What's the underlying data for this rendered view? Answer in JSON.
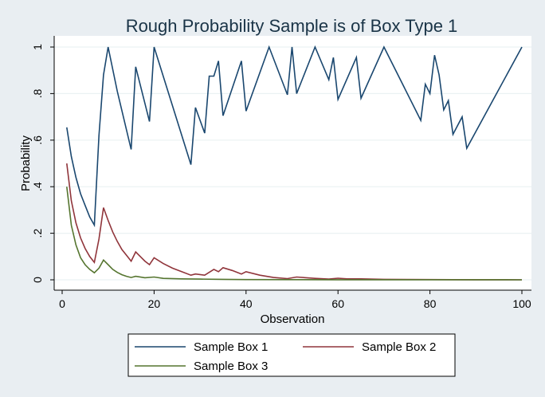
{
  "chart_data": {
    "type": "line",
    "title": "Rough Probability Sample is of Box Type 1",
    "xlabel": "Observation",
    "ylabel": "Probability",
    "xlim": [
      0,
      100
    ],
    "ylim": [
      0,
      1
    ],
    "xticks": [
      0,
      20,
      40,
      60,
      80,
      100
    ],
    "yticks": [
      0,
      0.2,
      0.4,
      0.6,
      0.8,
      1
    ],
    "ytick_labels": [
      "0",
      ".2",
      ".4",
      ".6",
      ".8",
      "1"
    ],
    "grid": true,
    "legend_position": "bottom",
    "series": [
      {
        "name": "Sample Box 1",
        "color": "#1a476f",
        "points": [
          [
            1,
            0.655
          ],
          [
            2,
            0.53
          ],
          [
            3,
            0.44
          ],
          [
            4,
            0.37
          ],
          [
            5,
            0.32
          ],
          [
            6,
            0.27
          ],
          [
            7,
            0.235
          ],
          [
            8,
            0.62
          ],
          [
            9,
            0.88
          ],
          [
            10,
            1.0
          ],
          [
            12,
            0.81
          ],
          [
            15,
            0.56
          ],
          [
            16,
            0.915
          ],
          [
            19,
            0.68
          ],
          [
            20,
            1.0
          ],
          [
            28,
            0.495
          ],
          [
            29,
            0.74
          ],
          [
            31,
            0.63
          ],
          [
            32,
            0.875
          ],
          [
            33,
            0.875
          ],
          [
            34,
            0.94
          ],
          [
            35,
            0.705
          ],
          [
            39,
            0.94
          ],
          [
            40,
            0.725
          ],
          [
            45,
            1.0
          ],
          [
            49,
            0.795
          ],
          [
            50,
            1.0
          ],
          [
            51,
            0.8
          ],
          [
            55,
            1.0
          ],
          [
            58,
            0.86
          ],
          [
            59,
            0.955
          ],
          [
            60,
            0.775
          ],
          [
            64,
            0.955
          ],
          [
            65,
            0.78
          ],
          [
            70,
            1.0
          ],
          [
            78,
            0.685
          ],
          [
            79,
            0.84
          ],
          [
            80,
            0.8
          ],
          [
            81,
            0.965
          ],
          [
            82,
            0.88
          ],
          [
            83,
            0.73
          ],
          [
            84,
            0.77
          ],
          [
            85,
            0.625
          ],
          [
            87,
            0.7
          ],
          [
            88,
            0.565
          ],
          [
            100,
            1.0
          ]
        ]
      },
      {
        "name": "Sample Box 2",
        "color": "#90353b",
        "points": [
          [
            1,
            0.5
          ],
          [
            2,
            0.34
          ],
          [
            3,
            0.245
          ],
          [
            4,
            0.18
          ],
          [
            5,
            0.135
          ],
          [
            6,
            0.1
          ],
          [
            7,
            0.075
          ],
          [
            8,
            0.175
          ],
          [
            9,
            0.31
          ],
          [
            10,
            0.255
          ],
          [
            11,
            0.205
          ],
          [
            12,
            0.165
          ],
          [
            13,
            0.13
          ],
          [
            14,
            0.105
          ],
          [
            15,
            0.08
          ],
          [
            16,
            0.12
          ],
          [
            17,
            0.1
          ],
          [
            18,
            0.08
          ],
          [
            19,
            0.065
          ],
          [
            20,
            0.095
          ],
          [
            22,
            0.07
          ],
          [
            24,
            0.05
          ],
          [
            26,
            0.035
          ],
          [
            28,
            0.02
          ],
          [
            29,
            0.025
          ],
          [
            31,
            0.02
          ],
          [
            33,
            0.045
          ],
          [
            34,
            0.035
          ],
          [
            35,
            0.052
          ],
          [
            37,
            0.04
          ],
          [
            39,
            0.025
          ],
          [
            40,
            0.035
          ],
          [
            43,
            0.02
          ],
          [
            46,
            0.01
          ],
          [
            49,
            0.005
          ],
          [
            51,
            0.012
          ],
          [
            55,
            0.006
          ],
          [
            58,
            0.003
          ],
          [
            60,
            0.007
          ],
          [
            62,
            0.004
          ],
          [
            65,
            0.004
          ],
          [
            70,
            0.002
          ],
          [
            80,
            0.001
          ],
          [
            90,
            0.0005
          ],
          [
            100,
            0.0
          ]
        ]
      },
      {
        "name": "Sample Box 3",
        "color": "#55752f",
        "points": [
          [
            1,
            0.4
          ],
          [
            2,
            0.235
          ],
          [
            3,
            0.15
          ],
          [
            4,
            0.095
          ],
          [
            5,
            0.065
          ],
          [
            6,
            0.045
          ],
          [
            7,
            0.03
          ],
          [
            8,
            0.05
          ],
          [
            9,
            0.085
          ],
          [
            10,
            0.065
          ],
          [
            11,
            0.045
          ],
          [
            12,
            0.032
          ],
          [
            13,
            0.022
          ],
          [
            14,
            0.015
          ],
          [
            15,
            0.01
          ],
          [
            16,
            0.015
          ],
          [
            18,
            0.009
          ],
          [
            20,
            0.012
          ],
          [
            22,
            0.006
          ],
          [
            26,
            0.004
          ],
          [
            30,
            0.003
          ],
          [
            35,
            0.002
          ],
          [
            40,
            0.001
          ],
          [
            60,
            0.0005
          ],
          [
            80,
            0.0003
          ],
          [
            100,
            0.0
          ]
        ]
      }
    ]
  }
}
